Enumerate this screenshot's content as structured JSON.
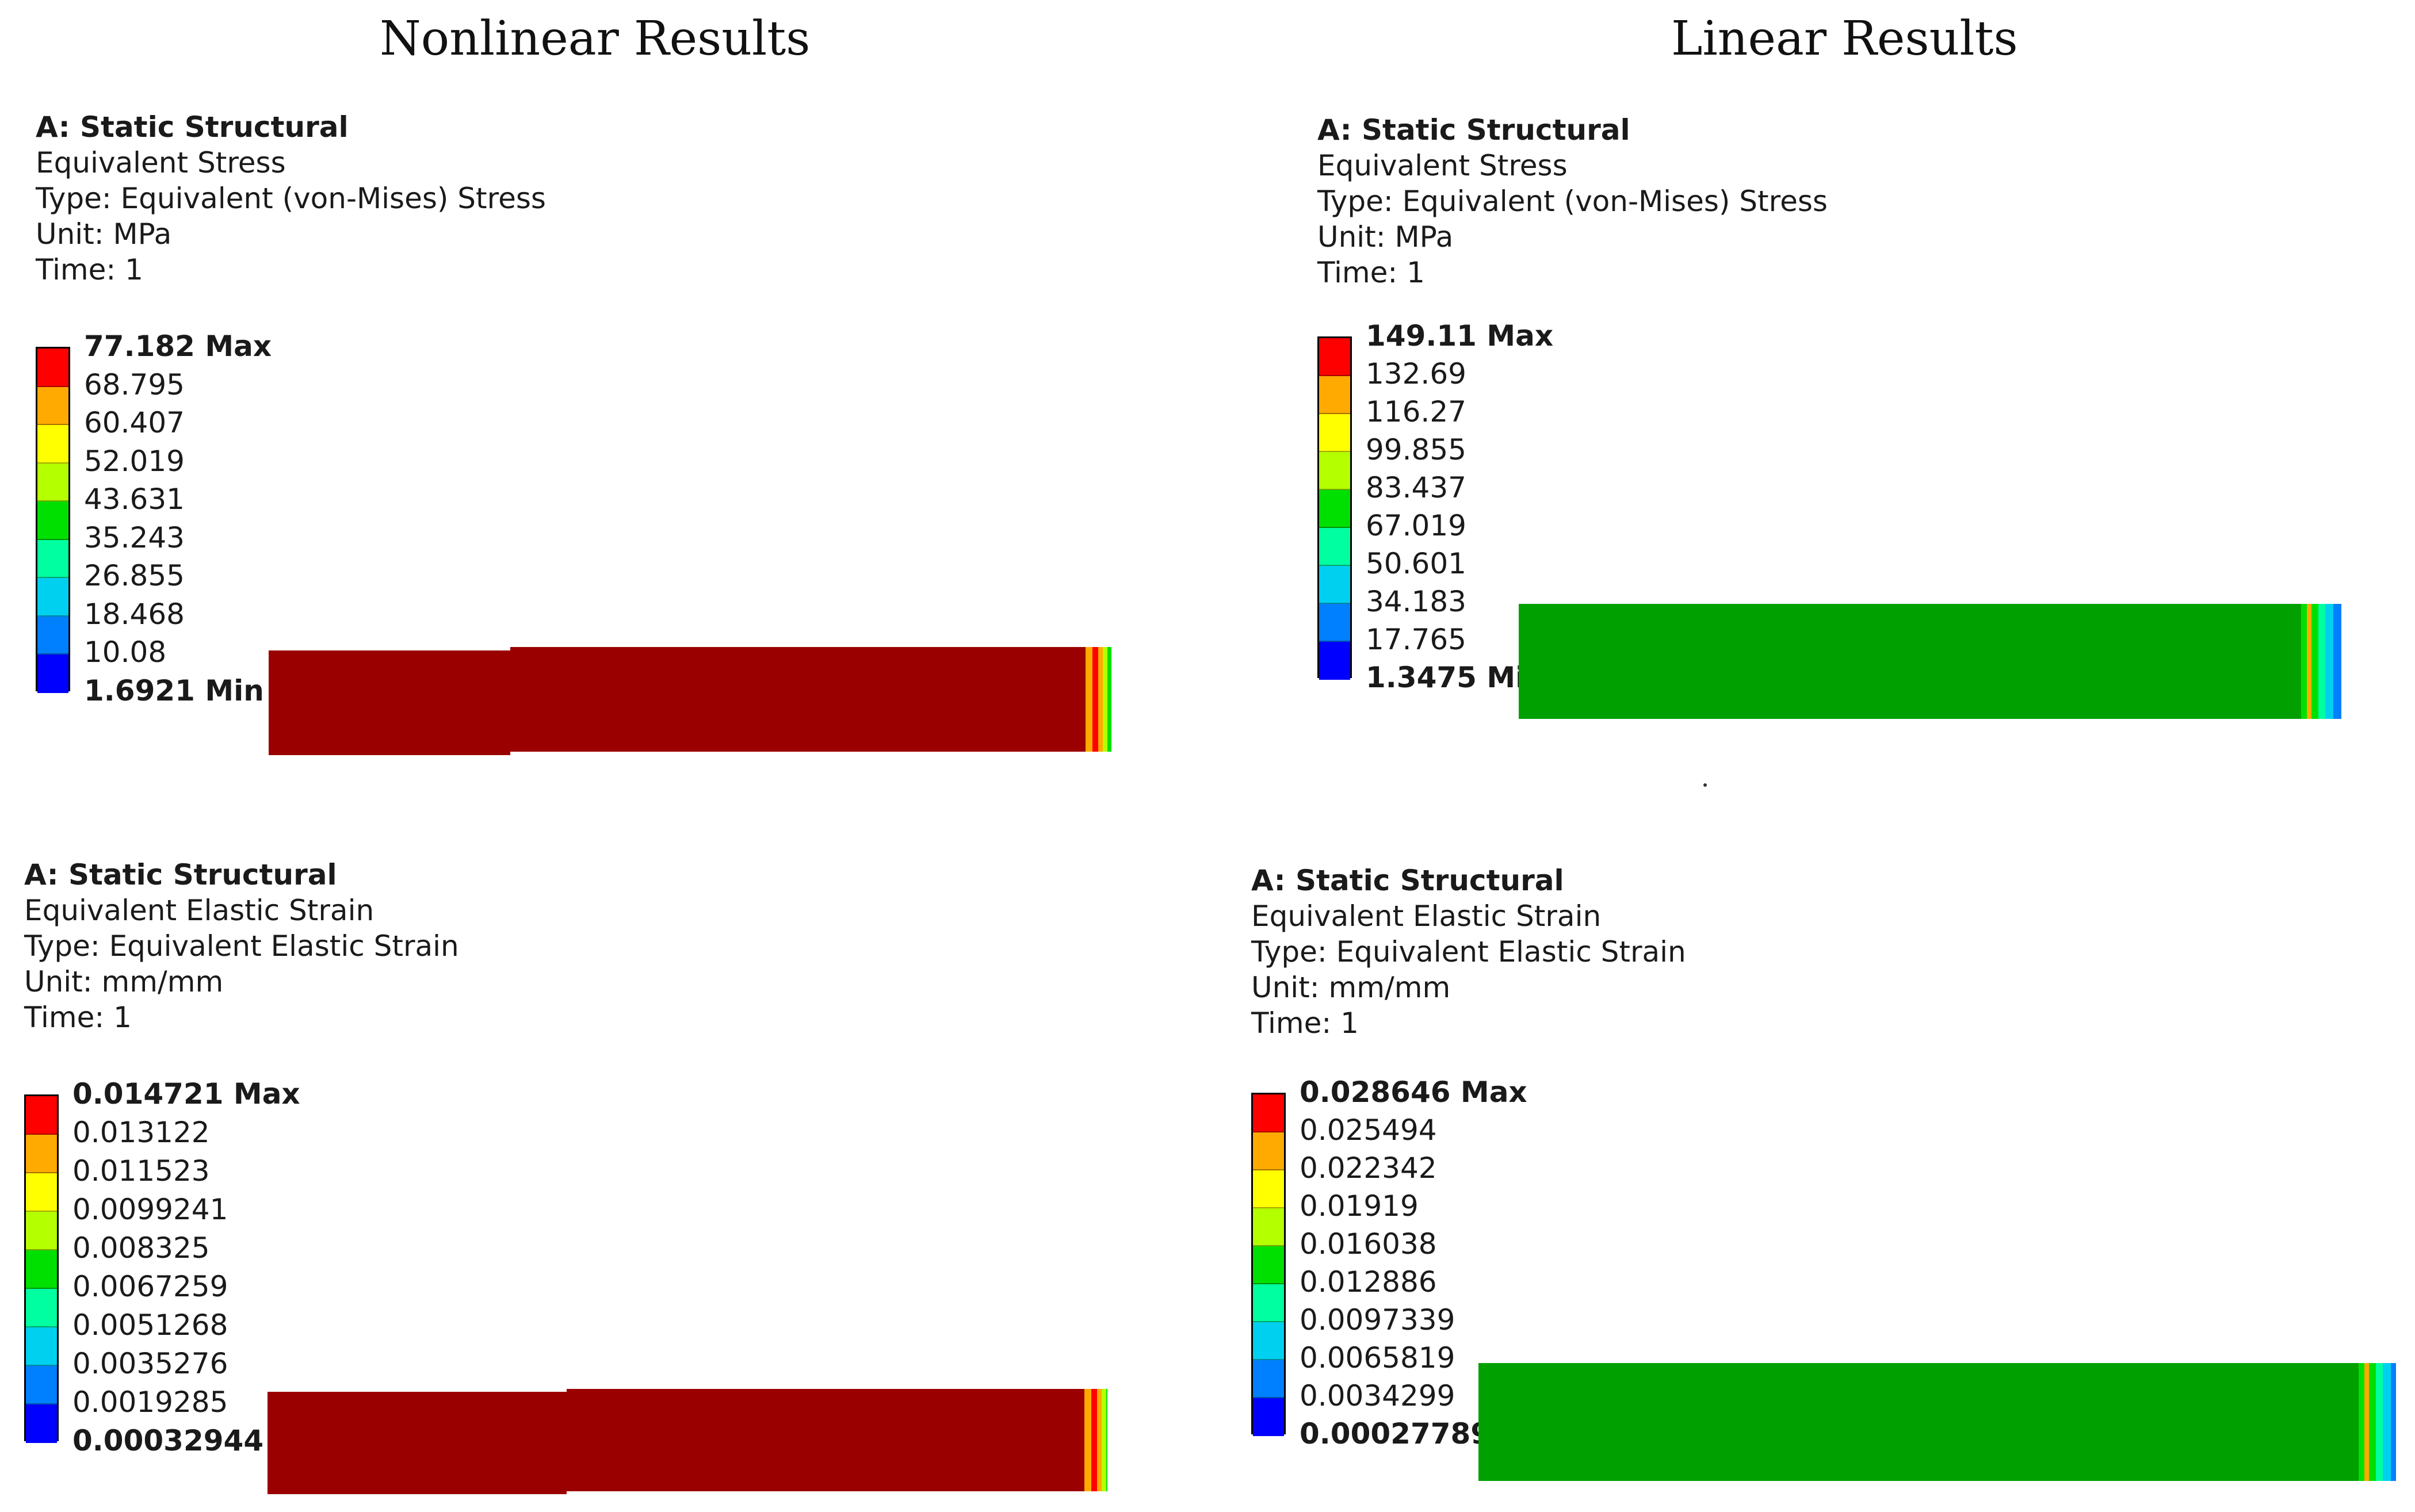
{
  "titles": {
    "left": "Nonlinear Results",
    "right": "Linear Results"
  },
  "panels": {
    "nl_stress": {
      "analysis": "A: Static Structural",
      "result": "Equivalent Stress",
      "type": "Type: Equivalent (von-Mises) Stress",
      "unit": "Unit: MPa",
      "time": "Time: 1",
      "max_label": "77.182 Max",
      "min_label": "1.6921 Min",
      "levels": [
        "68.795",
        "60.407",
        "52.019",
        "43.631",
        "35.243",
        "26.855",
        "18.468",
        "10.08"
      ],
      "body_color": "#9a0000"
    },
    "l_stress": {
      "analysis": "A: Static Structural",
      "result": "Equivalent Stress",
      "type": "Type: Equivalent (von-Mises) Stress",
      "unit": "Unit: MPa",
      "time": "Time: 1",
      "max_label": "149.11 Max",
      "min_label": "1.3475 Min",
      "levels": [
        "132.69",
        "116.27",
        "99.855",
        "83.437",
        "67.019",
        "50.601",
        "34.183",
        "17.765"
      ],
      "body_color": "#00a000"
    },
    "nl_strain": {
      "analysis": "A: Static Structural",
      "result": "Equivalent Elastic Strain",
      "type": "Type: Equivalent Elastic Strain",
      "unit": "Unit: mm/mm",
      "time": "Time: 1",
      "max_label": "0.014721 Max",
      "min_label": "0.00032944 Min",
      "levels": [
        "0.013122",
        "0.011523",
        "0.0099241",
        "0.008325",
        "0.0067259",
        "0.0051268",
        "0.0035276",
        "0.0019285"
      ],
      "body_color": "#9a0000"
    },
    "l_strain": {
      "analysis": "A: Static Structural",
      "result": "Equivalent Elastic Strain",
      "type": "Type: Equivalent Elastic Strain",
      "unit": "Unit: mm/mm",
      "time": "Time: 1",
      "max_label": "0.028646 Max",
      "min_label": "0.00027789 Min",
      "levels": [
        "0.025494",
        "0.022342",
        "0.01919",
        "0.016038",
        "0.012886",
        "0.0097339",
        "0.0065819",
        "0.0034299"
      ],
      "body_color": "#00a000"
    }
  },
  "colormap": [
    "#ff0000",
    "#ffaa00",
    "#ffff00",
    "#b4ff00",
    "#00e000",
    "#00ffa0",
    "#00d0f0",
    "#0080ff",
    "#0000ff"
  ]
}
